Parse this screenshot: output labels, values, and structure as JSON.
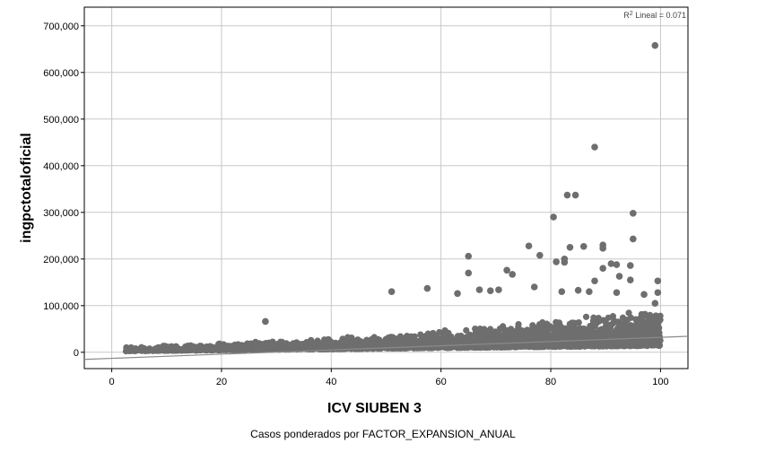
{
  "chart_data": {
    "type": "scatter",
    "xlabel": "ICV SIUBEN 3",
    "ylabel": "ingpctotaloficial",
    "xlim": [
      -5,
      105
    ],
    "ylim": [
      -35000,
      740000
    ],
    "x_ticks": [
      0,
      20,
      40,
      60,
      80,
      100
    ],
    "y_ticks": [
      0,
      100000,
      200000,
      300000,
      400000,
      500000,
      600000,
      700000
    ],
    "x_tick_labels": [
      "0",
      "20",
      "40",
      "60",
      "80",
      "100"
    ],
    "y_tick_labels": [
      "0",
      "100,000",
      "200,000",
      "300,000",
      "400,000",
      "500,000",
      "600,000",
      "700,000"
    ],
    "grid": true,
    "point_color": "#6e6e6e",
    "line_color": "#8a8a8a",
    "fit_line": {
      "label_prefix": "R",
      "label_sup": "2",
      "label_rest": " Lineal = 0.071",
      "intercept": -13000,
      "slope": 450
    },
    "outliers": [
      [
        99,
        658000
      ],
      [
        88,
        440000
      ],
      [
        83,
        337000
      ],
      [
        84.5,
        337000
      ],
      [
        95,
        298000
      ],
      [
        80.5,
        290000
      ],
      [
        95,
        243000
      ],
      [
        89.5,
        230000
      ],
      [
        89.5,
        223000
      ],
      [
        86,
        227000
      ],
      [
        76,
        228000
      ],
      [
        83.5,
        225000
      ],
      [
        78,
        208000
      ],
      [
        65,
        206000
      ],
      [
        81,
        194000
      ],
      [
        82.5,
        193000
      ],
      [
        82.5,
        200000
      ],
      [
        91,
        190000
      ],
      [
        92,
        188000
      ],
      [
        89.5,
        180000
      ],
      [
        94.5,
        186000
      ],
      [
        72,
        176000
      ],
      [
        65,
        170000
      ],
      [
        73,
        167000
      ],
      [
        92.5,
        163000
      ],
      [
        88,
        153000
      ],
      [
        94.5,
        155000
      ],
      [
        99.5,
        153000
      ],
      [
        77,
        140000
      ],
      [
        57.5,
        137000
      ],
      [
        51,
        130000
      ],
      [
        63,
        126000
      ],
      [
        67,
        134000
      ],
      [
        69,
        132000
      ],
      [
        70.5,
        134000
      ],
      [
        82,
        130000
      ],
      [
        85,
        133000
      ],
      [
        87,
        130000
      ],
      [
        92,
        128000
      ],
      [
        97,
        124000
      ],
      [
        99.5,
        128000
      ],
      [
        99,
        105000
      ],
      [
        28,
        66000
      ]
    ],
    "footnote": "Casos ponderados por FACTOR_EXPANSION_ANUAL"
  }
}
